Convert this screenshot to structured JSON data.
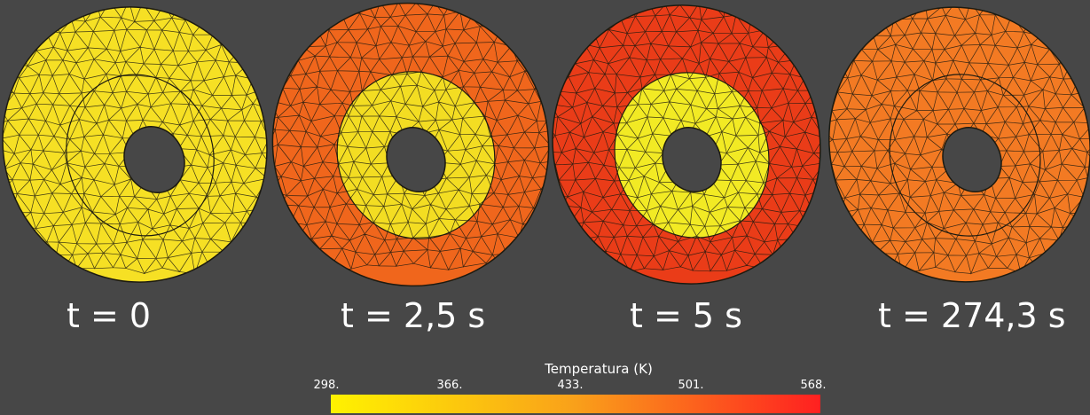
{
  "panels": [
    {
      "time_label": "t = 0",
      "outer_color": "#f6e024",
      "inner_color": "#f6e024",
      "hole_color": "#474747"
    },
    {
      "time_label": "t = 2,5 s",
      "outer_color": "#f0661c",
      "inner_color": "#f3dd22",
      "hole_color": "#474747"
    },
    {
      "time_label": "t = 5 s",
      "outer_color": "#ea3c18",
      "inner_color": "#f2ea24",
      "hole_color": "#474747"
    },
    {
      "time_label": "t = 274,3 s",
      "outer_color": "#f37a23",
      "inner_color": "#f37a23",
      "hole_color": "#474747"
    }
  ],
  "colorbar": {
    "title": "Temperatura (K)",
    "ticks": [
      "298.",
      "366.",
      "433.",
      "501.",
      "568."
    ],
    "range": [
      298,
      568
    ],
    "color_low": "#fff200",
    "color_high": "#ff2020"
  },
  "background_color": "#474747",
  "mesh_color": "#1c1a10"
}
